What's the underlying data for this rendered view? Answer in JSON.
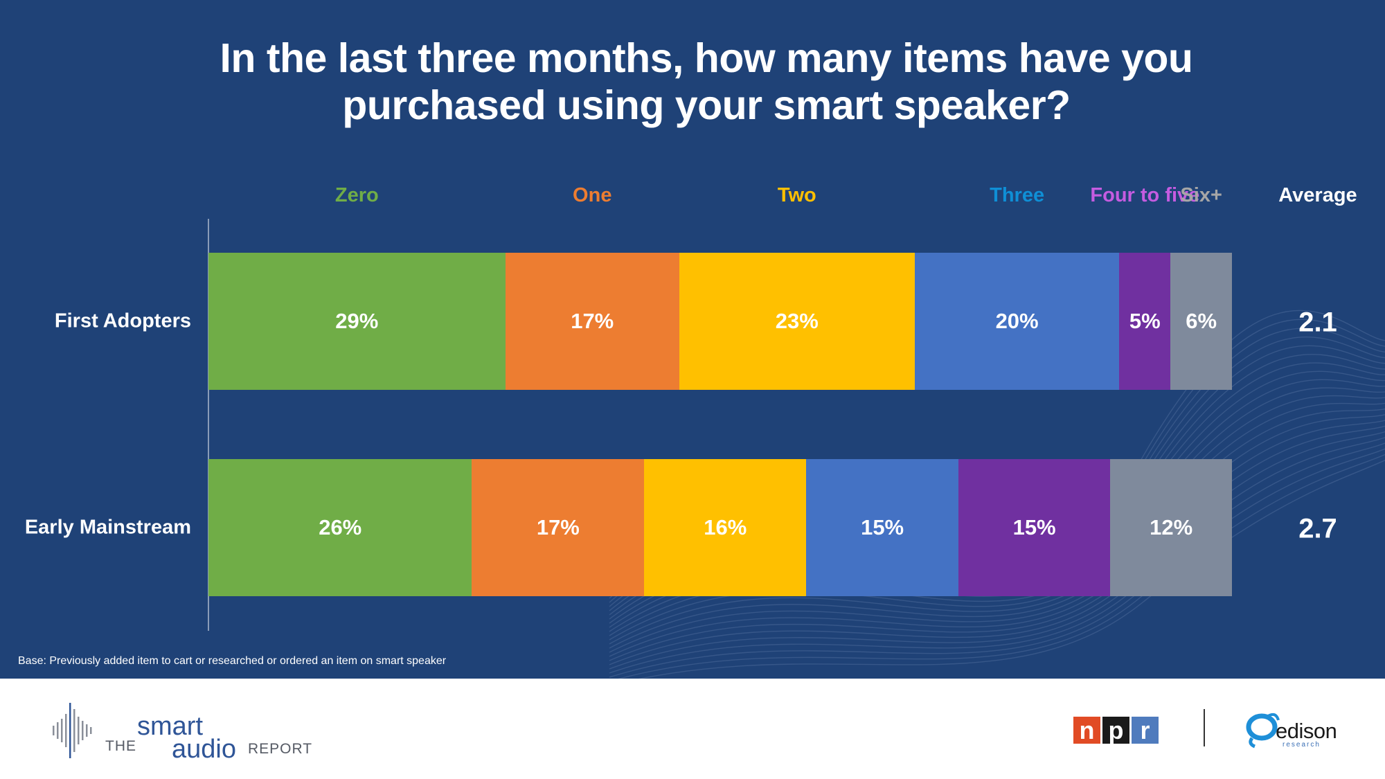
{
  "title_line1": "In the last three months, how many items have you",
  "title_line2": "purchased using your smart speaker?",
  "average_header": "Average",
  "base_note": "Base: Previously added item to cart or researched or ordered an item on smart speaker",
  "colors": {
    "background": "#1f4277",
    "Zero": "#70ad47",
    "One": "#ed7d31",
    "Two": "#ffc000",
    "Three": "#4472c4",
    "Four to five": "#7030a0",
    "Six+": "#7f8a9c",
    "header_Zero": "#70ad47",
    "header_One": "#ed7d31",
    "header_Two": "#ffc000",
    "header_Three": "#0f8fd6",
    "header_Four to five": "#c55ce0",
    "header_Six+": "#a6a6a6"
  },
  "chart_data": {
    "type": "bar",
    "orientation": "horizontal-stacked-100",
    "title": "In the last three months, how many items have you purchased using your smart speaker?",
    "categories": [
      "First Adopters",
      "Early Mainstream"
    ],
    "series": [
      {
        "name": "Zero",
        "values": [
          29,
          26
        ]
      },
      {
        "name": "One",
        "values": [
          17,
          17
        ]
      },
      {
        "name": "Two",
        "values": [
          23,
          16
        ]
      },
      {
        "name": "Three",
        "values": [
          20,
          15
        ]
      },
      {
        "name": "Four to five",
        "values": [
          5,
          15
        ]
      },
      {
        "name": "Six+",
        "values": [
          6,
          12
        ]
      }
    ],
    "labels": [
      [
        "29%",
        "17%",
        "23%",
        "20%",
        "5%",
        "6%"
      ],
      [
        "26%",
        "17%",
        "16%",
        "15%",
        "15%",
        "12%"
      ]
    ],
    "averages": [
      "2.1",
      "2.7"
    ],
    "legend": "top",
    "grid": false
  },
  "footer": {
    "sar_the": "THE",
    "sar_smart": "smart",
    "sar_audio": "audio",
    "sar_report": "REPORT",
    "npr_letters": [
      "n",
      "p",
      "r"
    ],
    "npr_colors": [
      "#e14b25",
      "#1a1a1a",
      "#4f7bbd"
    ],
    "edison_name": "edison",
    "edison_sub": "research"
  }
}
